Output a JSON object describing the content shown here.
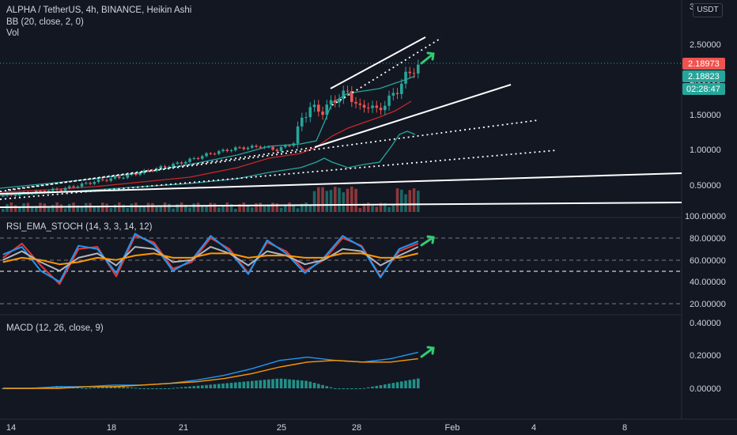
{
  "header": {
    "title": "ALPHA / TetherUS, 4h, BINANCE, Heikin Ashi",
    "indicator1": "BB (20, close, 2, 0)",
    "indicator2": "Vol",
    "currency": "USDT"
  },
  "price_axis": {
    "top_partial": "3",
    "ticks": [
      "2.50000",
      "2.00000",
      "1.50000",
      "1.00000",
      "0.50000"
    ],
    "vol_label": "100.00000",
    "badge_last": "2.18973",
    "badge_close": "2.18823",
    "badge_timer": "02:28:47",
    "colors": {
      "red": "#ef5350",
      "green": "#26a69a"
    }
  },
  "rsi_panel": {
    "title": "RSI_EMA_STOCH (14, 3, 3, 14, 12)",
    "ticks": [
      "80.00000",
      "60.00000",
      "40.00000",
      "20.00000"
    ]
  },
  "macd_panel": {
    "title": "MACD (12, 26, close, 9)",
    "ticks": [
      "0.40000",
      "0.20000",
      "0.00000"
    ]
  },
  "time_axis": [
    "14",
    "18",
    "21",
    "25",
    "28",
    "Feb",
    "4",
    "8"
  ],
  "chart_data": [
    {
      "type": "candlestick",
      "title": "ALPHA / TetherUS, 4h, BINANCE, Heikin Ashi",
      "x_ticks": [
        "14",
        "18",
        "21",
        "25",
        "28",
        "Feb",
        "4",
        "8"
      ],
      "y_ticks": [
        0.5,
        1.0,
        1.5,
        2.0,
        2.5
      ],
      "ylim": [
        0.3,
        3.0
      ],
      "approx_close_path": [
        [
          0,
          0.35
        ],
        [
          8,
          0.4
        ],
        [
          15,
          0.45
        ],
        [
          22,
          0.55
        ],
        [
          29,
          0.62
        ],
        [
          36,
          0.72
        ],
        [
          43,
          0.82
        ],
        [
          50,
          0.95
        ],
        [
          56,
          1.02
        ],
        [
          62,
          1.05
        ],
        [
          66,
          1.0
        ],
        [
          70,
          1.1
        ],
        [
          72,
          1.45
        ],
        [
          74,
          1.6
        ],
        [
          77,
          1.55
        ],
        [
          80,
          1.72
        ],
        [
          83,
          1.82
        ],
        [
          86,
          1.58
        ],
        [
          88,
          1.65
        ],
        [
          90,
          1.55
        ],
        [
          93,
          1.72
        ],
        [
          95,
          1.85
        ],
        [
          97,
          2.05
        ],
        [
          100,
          2.19
        ]
      ],
      "last_price": 2.18973,
      "close_price": 2.18823
    },
    {
      "type": "line",
      "title": "RSI_EMA_STOCH (14, 3, 3, 14, 12)",
      "y_ticks": [
        20,
        40,
        60,
        80
      ],
      "ylim": [
        10,
        95
      ],
      "series": [
        {
          "color": "#e53935",
          "values": [
            62,
            75,
            55,
            38,
            70,
            72,
            45,
            82,
            76,
            52,
            58,
            80,
            70,
            48,
            76,
            68,
            50,
            60,
            80,
            73,
            45,
            68,
            75
          ]
        },
        {
          "color": "#2196f3",
          "values": [
            65,
            72,
            50,
            40,
            73,
            70,
            48,
            84,
            74,
            50,
            60,
            82,
            68,
            47,
            78,
            66,
            48,
            62,
            82,
            72,
            44,
            70,
            77
          ]
        },
        {
          "color": "#b2b5be",
          "values": [
            60,
            68,
            58,
            50,
            62,
            66,
            55,
            72,
            70,
            58,
            60,
            72,
            66,
            55,
            68,
            64,
            56,
            60,
            70,
            68,
            55,
            64,
            72
          ]
        },
        {
          "color": "#ff9800",
          "values": [
            58,
            62,
            60,
            56,
            58,
            62,
            60,
            64,
            66,
            62,
            62,
            66,
            66,
            62,
            64,
            64,
            62,
            62,
            66,
            66,
            62,
            62,
            66
          ]
        }
      ]
    },
    {
      "type": "line",
      "title": "MACD (12, 26, close, 9)",
      "y_ticks": [
        0.0,
        0.2,
        0.4
      ],
      "ylim": [
        -0.05,
        0.42
      ],
      "series": [
        {
          "color": "#2196f3",
          "values": [
            0.0,
            0.0,
            0.01,
            0.01,
            0.02,
            0.02,
            0.03,
            0.05,
            0.08,
            0.12,
            0.17,
            0.19,
            0.17,
            0.16,
            0.18,
            0.22
          ]
        },
        {
          "color": "#ff9800",
          "values": [
            0.0,
            0.0,
            0.0,
            0.01,
            0.01,
            0.02,
            0.03,
            0.04,
            0.06,
            0.09,
            0.13,
            0.16,
            0.17,
            0.16,
            0.16,
            0.18
          ]
        }
      ]
    }
  ]
}
